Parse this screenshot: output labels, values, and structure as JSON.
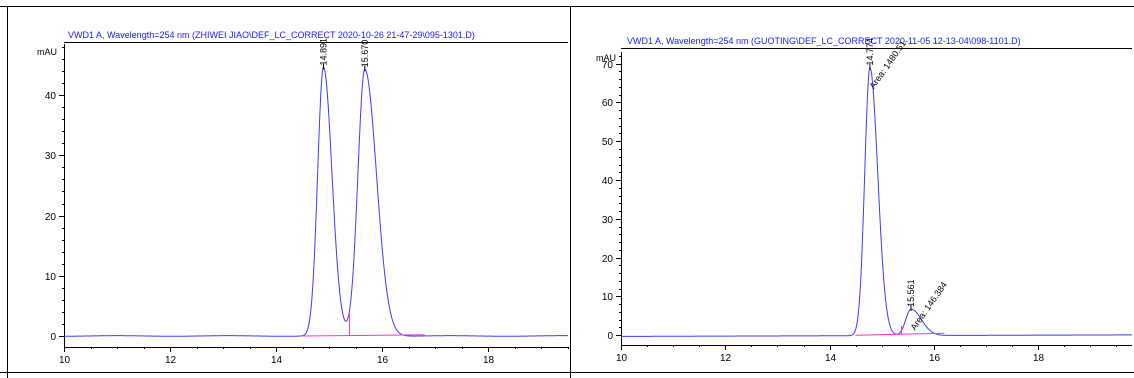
{
  "chart_data": [
    {
      "type": "line",
      "title": "VWD1 A, Wavelength=254 nm (ZHIWEI JIAO\\DEF_LC_CORRECT 2020-10-26 21-47-29\\095-1301.D)",
      "ylabel": "mAU",
      "xlim": [
        10,
        19.5
      ],
      "ylim": [
        -1.5,
        48.5
      ],
      "xticks": [
        "10",
        "12",
        "14",
        "16",
        "18"
      ],
      "yticks": [
        "0",
        "10",
        "20",
        "30",
        "40"
      ],
      "peaks": [
        {
          "rt": 14.891,
          "label": "14.891",
          "height": 44.6,
          "sigma_left": 0.11,
          "sigma_right": 0.16
        },
        {
          "rt": 15.67,
          "label": "15.670",
          "height": 44.3,
          "sigma_left": 0.13,
          "sigma_right": 0.22
        }
      ],
      "valley": {
        "x": 15.38,
        "y": 3.9
      },
      "baseline": [
        [
          14.5,
          0.0
        ],
        [
          16.8,
          0.2
        ]
      ],
      "area_labels": []
    },
    {
      "type": "line",
      "title": "VWD1 A, Wavelength=254 nm (GUOTING\\DEF_LC_CORRECT 2020-11-05 12-13-04\\098-1101.D)",
      "ylabel": "mAU",
      "xlim": [
        10,
        19.8
      ],
      "ylim": [
        -2,
        73
      ],
      "xticks": [
        "10",
        "12",
        "14",
        "16",
        "18"
      ],
      "yticks": [
        "0",
        "10",
        "20",
        "30",
        "40",
        "50",
        "60",
        "70"
      ],
      "peaks": [
        {
          "rt": 14.774,
          "label": "14.774",
          "height": 69.0,
          "sigma_left": 0.1,
          "sigma_right": 0.15
        },
        {
          "rt": 15.561,
          "label": "15.561",
          "height": 6.8,
          "sigma_left": 0.1,
          "sigma_right": 0.2
        }
      ],
      "valley": {
        "x": 15.38,
        "y": 2.4
      },
      "baseline": [
        [
          14.5,
          0.0
        ],
        [
          16.2,
          0.5
        ]
      ],
      "area_labels": [
        "Area: 1480.51",
        "Area: 146.384"
      ]
    }
  ]
}
